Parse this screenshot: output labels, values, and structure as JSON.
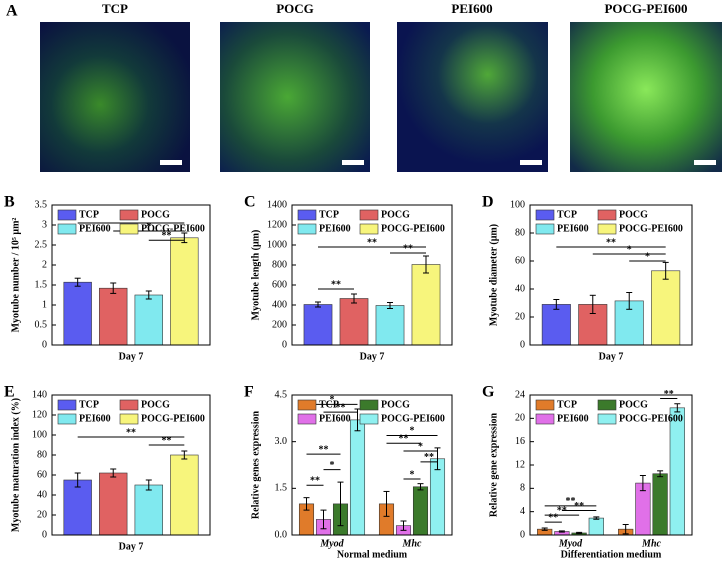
{
  "figure_a": {
    "label": "A",
    "images": [
      {
        "title": "TCP"
      },
      {
        "title": "POCG"
      },
      {
        "title": "PEI600"
      },
      {
        "title": "POCG-PEI600"
      }
    ]
  },
  "chart_data": [
    {
      "type": "bar",
      "panel": "B",
      "ylabel": "Myotube number / 10⁵ μm²",
      "xlabel": "Day 7",
      "ylim": [
        0,
        3.5
      ],
      "yticks": [
        0,
        0.5,
        1,
        1.5,
        2,
        2.5,
        3,
        3.5
      ],
      "legend_layout": "rows",
      "series": [
        {
          "name": "TCP",
          "color": "#5a5cf0",
          "values": [
            1.57
          ],
          "errors": [
            0.1
          ]
        },
        {
          "name": "POCG",
          "color": "#e06262",
          "values": [
            1.42
          ],
          "errors": [
            0.13
          ]
        },
        {
          "name": "PEI600",
          "color": "#80e9ef",
          "values": [
            1.25
          ],
          "errors": [
            0.1
          ]
        },
        {
          "name": "POCG-PEI600",
          "color": "#f7f57c",
          "values": [
            2.68
          ],
          "errors": [
            0.12
          ]
        }
      ],
      "brackets": [
        {
          "label": "**",
          "from": 0,
          "to": 3,
          "y": 3.05
        },
        {
          "label": "*",
          "from": 1,
          "to": 3,
          "y": 2.85
        },
        {
          "label": "**",
          "from": 2,
          "to": 3,
          "y": 2.62
        }
      ]
    },
    {
      "type": "bar",
      "panel": "C",
      "ylabel": "Myotube length (μm)",
      "xlabel": "Day 7",
      "ylim": [
        0,
        1400
      ],
      "yticks": [
        0,
        200,
        400,
        600,
        800,
        1000,
        1200,
        1400
      ],
      "legend_layout": "rows",
      "series": [
        {
          "name": "TCP",
          "color": "#5a5cf0",
          "values": [
            405
          ],
          "errors": [
            25
          ]
        },
        {
          "name": "POCG",
          "color": "#e06262",
          "values": [
            465
          ],
          "errors": [
            45
          ]
        },
        {
          "name": "PEI600",
          "color": "#80e9ef",
          "values": [
            395
          ],
          "errors": [
            30
          ]
        },
        {
          "name": "POCG-PEI600",
          "color": "#f7f57c",
          "values": [
            805
          ],
          "errors": [
            85
          ]
        }
      ],
      "brackets": [
        {
          "label": "**",
          "from": 0,
          "to": 1,
          "y": 560
        },
        {
          "label": "**",
          "from": 0,
          "to": 3,
          "y": 980
        },
        {
          "label": "**",
          "from": 2,
          "to": 3,
          "y": 920
        }
      ]
    },
    {
      "type": "bar",
      "panel": "D",
      "ylabel": "Myotube diameter (μm)",
      "xlabel": "Day 7",
      "ylim": [
        0,
        100
      ],
      "yticks": [
        0,
        20,
        40,
        60,
        80,
        100
      ],
      "legend_layout": "rows",
      "series": [
        {
          "name": "TCP",
          "color": "#5a5cf0",
          "values": [
            29
          ],
          "errors": [
            3.5
          ]
        },
        {
          "name": "POCG",
          "color": "#e06262",
          "values": [
            29
          ],
          "errors": [
            6.5
          ]
        },
        {
          "name": "PEI600",
          "color": "#80e9ef",
          "values": [
            31.5
          ],
          "errors": [
            6
          ]
        },
        {
          "name": "POCG-PEI600",
          "color": "#f7f57c",
          "values": [
            53
          ],
          "errors": [
            6
          ]
        }
      ],
      "brackets": [
        {
          "label": "**",
          "from": 0,
          "to": 3,
          "y": 70
        },
        {
          "label": "*",
          "from": 1,
          "to": 3,
          "y": 65
        },
        {
          "label": "*",
          "from": 2,
          "to": 3,
          "y": 60
        }
      ]
    },
    {
      "type": "bar",
      "panel": "E",
      "ylabel": "Myotube maturation index (%)",
      "xlabel": "Day 7",
      "ylim": [
        0,
        140
      ],
      "yticks": [
        0,
        20,
        40,
        60,
        80,
        100,
        120,
        140
      ],
      "legend_layout": "rows",
      "series": [
        {
          "name": "TCP",
          "color": "#5a5cf0",
          "values": [
            55
          ],
          "errors": [
            7
          ]
        },
        {
          "name": "POCG",
          "color": "#e06262",
          "values": [
            62
          ],
          "errors": [
            4
          ]
        },
        {
          "name": "PEI600",
          "color": "#80e9ef",
          "values": [
            50
          ],
          "errors": [
            5
          ]
        },
        {
          "name": "POCG-PEI600",
          "color": "#f7f57c",
          "values": [
            80
          ],
          "errors": [
            4
          ]
        }
      ],
      "brackets": [
        {
          "label": "**",
          "from": 0,
          "to": 3,
          "y": 98
        },
        {
          "label": "**",
          "from": 2,
          "to": 3,
          "y": 90
        }
      ]
    },
    {
      "type": "bar",
      "panel": "F",
      "ylabel": "Relative genes expression",
      "xlabel": "Normal medium",
      "ylim": [
        0,
        4.5
      ],
      "yticks": [
        {
          "value": 0,
          "label": "0.0"
        },
        1.5,
        {
          "value": 3,
          "label": "3.0"
        },
        4.5
      ],
      "legend_layout": "columns",
      "categories": [
        "Myod",
        "Mhc"
      ],
      "series": [
        {
          "name": "TCP",
          "color": "#e07b2a",
          "values": [
            1.0,
            1.0
          ],
          "errors": [
            0.2,
            0.4
          ]
        },
        {
          "name": "PEI600",
          "color": "#e070e8",
          "values": [
            0.5,
            0.3
          ],
          "errors": [
            0.3,
            0.15
          ]
        },
        {
          "name": "POCG",
          "color": "#3b7a2b",
          "values": [
            1.0,
            1.55
          ],
          "errors": [
            0.7,
            0.1
          ]
        },
        {
          "name": "POCG-PEI600",
          "color": "#8ff0f0",
          "values": [
            3.7,
            2.45
          ],
          "errors": [
            0.35,
            0.35
          ]
        }
      ],
      "brackets": [
        {
          "label": "*",
          "from": 0,
          "to": 3,
          "y": 4.2
        },
        {
          "label": "**",
          "from": 1,
          "to": 3,
          "y": 3.95
        },
        {
          "label": "**",
          "from": 0,
          "to": 2,
          "y": 2.6
        },
        {
          "label": "*",
          "from": 1,
          "to": 2,
          "y": 2.1
        },
        {
          "label": "**",
          "from": 0,
          "to": 1,
          "y": 1.6
        },
        {
          "label": "*",
          "from": 4,
          "to": 7,
          "y": 3.2
        },
        {
          "label": "**",
          "from": 4,
          "to": 6,
          "y": 2.95
        },
        {
          "label": "*",
          "from": 5,
          "to": 7,
          "y": 2.7
        },
        {
          "label": "**",
          "from": 6,
          "to": 7,
          "y": 2.35
        },
        {
          "label": "*",
          "from": 5,
          "to": 6,
          "y": 1.8
        }
      ]
    },
    {
      "type": "bar",
      "panel": "G",
      "ylabel": "Relative gene expression",
      "xlabel": "Differentiation medium",
      "ylim": [
        0,
        24
      ],
      "yticks": [
        0,
        4,
        8,
        12,
        16,
        20,
        24
      ],
      "legend_layout": "columns",
      "categories": [
        "Myod",
        "Mhc"
      ],
      "series": [
        {
          "name": "TCP",
          "color": "#e07b2a",
          "values": [
            1.0,
            1.0
          ],
          "errors": [
            0.2,
            0.8
          ]
        },
        {
          "name": "PEI600",
          "color": "#e070e8",
          "values": [
            0.6,
            8.9
          ],
          "errors": [
            0.1,
            1.3
          ]
        },
        {
          "name": "POCG",
          "color": "#3b7a2b",
          "values": [
            0.35,
            10.5
          ],
          "errors": [
            0.1,
            0.5
          ]
        },
        {
          "name": "POCG-PEI600",
          "color": "#8ff0f0",
          "values": [
            2.9,
            21.8
          ],
          "errors": [
            0.2,
            0.7
          ]
        }
      ],
      "brackets": [
        {
          "label": "**",
          "from": 0,
          "to": 3,
          "y": 5.0
        },
        {
          "label": "**",
          "from": 1,
          "to": 3,
          "y": 4.2
        },
        {
          "label": "**",
          "from": 0,
          "to": 2,
          "y": 3.4
        },
        {
          "label": "**",
          "from": 0,
          "to": 1,
          "y": 2.2
        },
        {
          "label": "**",
          "from": 6,
          "to": 7,
          "y": 23.4
        }
      ]
    }
  ]
}
